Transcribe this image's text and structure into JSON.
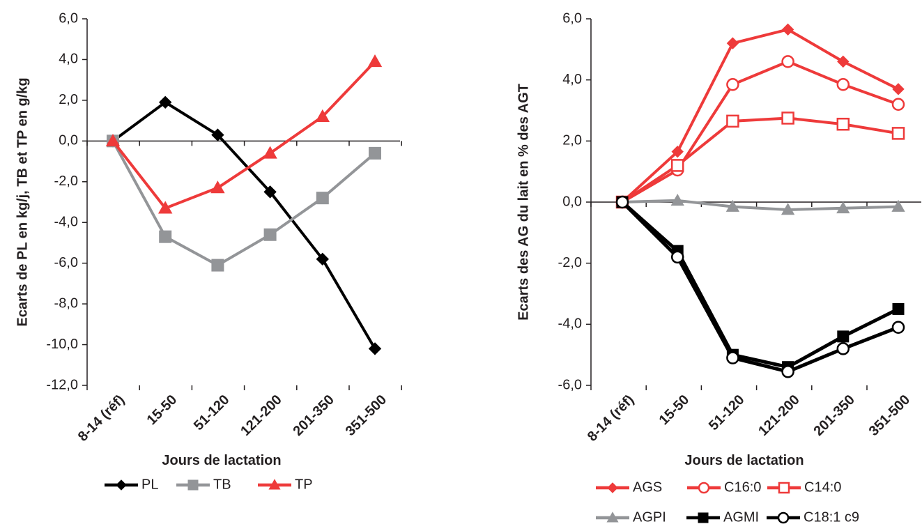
{
  "chart_data": [
    {
      "type": "line",
      "title": "",
      "xlabel": "Jours de lactation",
      "ylabel": "Ecarts de PL en kg/j, TB et TP en g/kg",
      "ylim": [
        -12,
        6
      ],
      "yticks": [
        "6,0",
        "4,0",
        "2,0",
        "0,0",
        "-2,0",
        "-4,0",
        "-6,0",
        "-8,0",
        "-10,0",
        "-12,0"
      ],
      "categories": [
        "8-14 (réf)",
        "15-50",
        "51-120",
        "121-200",
        "201-350",
        "351-500"
      ],
      "legend_position": "bottom",
      "grid": false,
      "series": [
        {
          "name": "PL",
          "color": "#000000",
          "marker": "diamond",
          "values": [
            0.0,
            1.9,
            0.3,
            -2.5,
            -5.8,
            -10.2
          ]
        },
        {
          "name": "TB",
          "color": "#939598",
          "marker": "square",
          "values": [
            0.0,
            -4.7,
            -6.1,
            -4.6,
            -2.8,
            -0.6
          ]
        },
        {
          "name": "TP",
          "color": "#ee3a3a",
          "marker": "triangle",
          "values": [
            0.0,
            -3.3,
            -2.3,
            -0.6,
            1.2,
            3.9
          ]
        }
      ]
    },
    {
      "type": "line",
      "title": "",
      "xlabel": "Jours de lactation",
      "ylabel": "Ecarts des AG du lait en % des AGT",
      "ylim": [
        -6,
        6
      ],
      "yticks": [
        "6,0",
        "4,0",
        "2,0",
        "0,0",
        "-2,0",
        "-4,0",
        "-6,0"
      ],
      "categories": [
        "8-14 (réf)",
        "15-50",
        "51-120",
        "121-200",
        "201-350",
        "351-500"
      ],
      "legend_position": "bottom",
      "grid": false,
      "series": [
        {
          "name": "AGS",
          "color": "#ee3a3a",
          "marker": "diamond",
          "values": [
            0.0,
            1.65,
            5.2,
            5.65,
            4.6,
            3.7
          ]
        },
        {
          "name": "C16:0",
          "color": "#ee3a3a",
          "marker": "circle-open",
          "values": [
            0.0,
            1.05,
            3.85,
            4.6,
            3.85,
            3.2
          ]
        },
        {
          "name": "C14:0",
          "color": "#ee3a3a",
          "marker": "square-open",
          "values": [
            0.0,
            1.2,
            2.65,
            2.75,
            2.55,
            2.25
          ]
        },
        {
          "name": "AGPI",
          "color": "#939598",
          "marker": "triangle",
          "values": [
            0.0,
            0.05,
            -0.15,
            -0.25,
            -0.2,
            -0.15
          ]
        },
        {
          "name": "AGMI",
          "color": "#000000",
          "marker": "square",
          "values": [
            0.0,
            -1.6,
            -5.0,
            -5.4,
            -4.4,
            -3.5
          ]
        },
        {
          "name": "C18:1 c9",
          "color": "#000000",
          "marker": "circle-open",
          "values": [
            0.0,
            -1.8,
            -5.1,
            -5.55,
            -4.8,
            -4.1
          ]
        }
      ]
    }
  ]
}
